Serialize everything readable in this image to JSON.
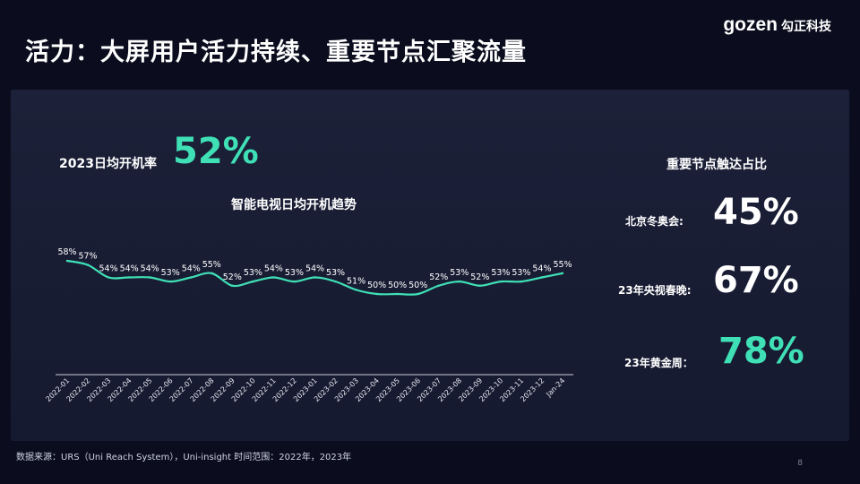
{
  "title": "活力：大屏用户活力持续、重要节点汇聚流量",
  "logo": {
    "mark": "gozen",
    "cn": "勾正科技"
  },
  "daily_rate": {
    "label": "2023日均开机率",
    "value": "52%"
  },
  "chart_title": "智能电视日均开机趋势",
  "stats": {
    "title": "重要节点触达占比",
    "items": [
      {
        "label": "北京冬奥会:",
        "value": "45%",
        "color": "#ffffff"
      },
      {
        "label": "23年央视春晚:",
        "value": "67%",
        "color": "#ffffff"
      },
      {
        "label": "23年黄金周：",
        "value": "78%",
        "color": "#3fe0b6"
      }
    ]
  },
  "footer": "数据来源：URS（Uni Reach System），Uni-insight 时间范围：2022年，2023年",
  "page_number": "8",
  "colors": {
    "accent": "#3fe0b6",
    "background": "#0b0d1e",
    "panel": "#1a1e36"
  },
  "chart_data": {
    "type": "line",
    "title": "智能电视日均开机趋势",
    "x": [
      "2022-01",
      "2022-02",
      "2022-03",
      "2022-04",
      "2022-05",
      "2022-06",
      "2022-07",
      "2022-08",
      "2022-09",
      "2022-10",
      "2022-11",
      "2022-12",
      "2023-01",
      "2023-02",
      "2023-03",
      "2023-04",
      "2023-05",
      "2023-06",
      "2023-07",
      "2023-08",
      "2023-09",
      "2023-10",
      "2023-11",
      "2023-12",
      "Jan-24"
    ],
    "values": [
      58,
      57,
      54,
      54,
      54,
      53,
      54,
      55,
      52,
      53,
      54,
      53,
      54,
      53,
      51,
      50,
      50,
      50,
      52,
      53,
      52,
      53,
      53,
      54,
      55
    ],
    "value_labels": [
      "58%",
      "57%",
      "54%",
      "54%",
      "54%",
      "53%",
      "54%",
      "55%",
      "52%",
      "53%",
      "54%",
      "53%",
      "54%",
      "53%",
      "51%",
      "50%",
      "50%",
      "50%",
      "52%",
      "53%",
      "52%",
      "53%",
      "53%",
      "54%",
      "55%"
    ],
    "series_color": "#3fe0b6",
    "grid": false,
    "smooth": true
  }
}
